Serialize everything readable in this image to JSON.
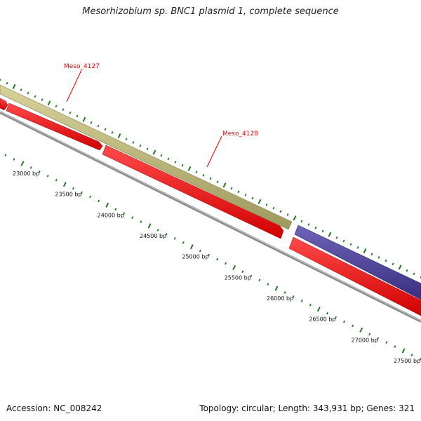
{
  "title": "Mesorhizobium sp. BNC1 plasmid 1, complete sequence",
  "footer": {
    "accession": "Accession: NC_008242",
    "summary": "Topology: circular; Length: 343,931 bp; Genes: 321"
  },
  "colors": {
    "cds_forward": "#b9b478",
    "cds_reverse": "#ff0000",
    "cds_other": "#4b3f96",
    "backbone": "#8c8c8c",
    "ticks": "#1e7a1e",
    "gene_label": "#e00000"
  },
  "chart_data": {
    "type": "plasmid-map-zoom",
    "axis_ticks": [
      {
        "bp": 23000,
        "label": "23000 bp"
      },
      {
        "bp": 23500,
        "label": "23500 bp"
      },
      {
        "bp": 24000,
        "label": "24000 bp"
      },
      {
        "bp": 24500,
        "label": "24500 bp"
      },
      {
        "bp": 25000,
        "label": "25000 bp"
      },
      {
        "bp": 25500,
        "label": "25500 bp"
      },
      {
        "bp": 26000,
        "label": "26000 bp"
      },
      {
        "bp": 26500,
        "label": "26500 bp"
      },
      {
        "bp": 27000,
        "label": "27000 bp"
      },
      {
        "bp": 27500,
        "label": "27500 bp"
      }
    ],
    "gene_labels": [
      {
        "name": "Meso_4127"
      },
      {
        "name": "Meso_4128"
      }
    ]
  }
}
